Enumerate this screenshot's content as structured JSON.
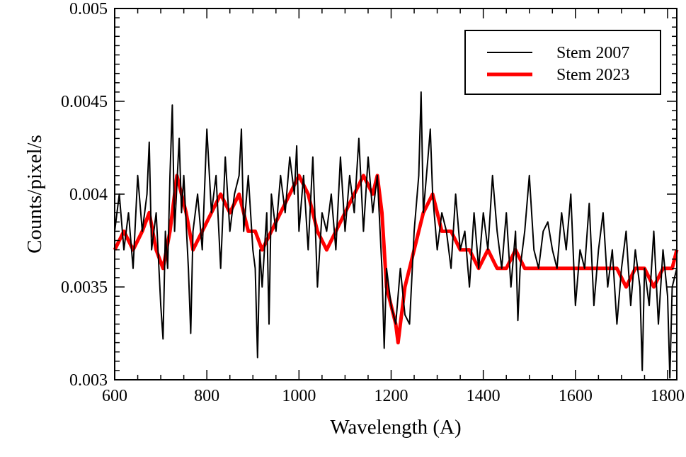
{
  "chart_data": {
    "type": "line",
    "title": "",
    "xlabel": "Wavelength (A)",
    "ylabel": "Counts/pixel/s",
    "xlim": [
      600,
      1820
    ],
    "ylim": [
      0.003,
      0.005
    ],
    "xticks": [
      600,
      800,
      1000,
      1200,
      1400,
      1600,
      1800
    ],
    "xtick_labels": [
      "600",
      "800",
      "1000",
      "1200",
      "1400",
      "1600",
      "1800"
    ],
    "yticks": [
      0.003,
      0.0035,
      0.004,
      0.0045,
      0.005
    ],
    "ytick_labels": [
      "0.003",
      "0.0035",
      "0.004",
      "0.0045",
      "0.005"
    ],
    "grid": false,
    "legend_position": "top-right",
    "series": [
      {
        "name": "Stem 2007",
        "color": "#000000",
        "x": [
          600,
          610,
          620,
          630,
          640,
          650,
          660,
          670,
          675,
          680,
          690,
          700,
          705,
          710,
          715,
          720,
          725,
          730,
          740,
          745,
          750,
          760,
          765,
          770,
          780,
          790,
          800,
          810,
          820,
          830,
          840,
          850,
          860,
          870,
          875,
          880,
          890,
          900,
          905,
          910,
          915,
          920,
          930,
          935,
          940,
          950,
          960,
          970,
          980,
          990,
          995,
          1000,
          1010,
          1020,
          1030,
          1040,
          1050,
          1060,
          1070,
          1080,
          1090,
          1100,
          1110,
          1120,
          1130,
          1140,
          1150,
          1160,
          1170,
          1180,
          1185,
          1190,
          1200,
          1210,
          1220,
          1230,
          1240,
          1250,
          1260,
          1265,
          1270,
          1280,
          1285,
          1290,
          1300,
          1310,
          1320,
          1330,
          1340,
          1350,
          1360,
          1370,
          1380,
          1390,
          1400,
          1410,
          1420,
          1430,
          1440,
          1450,
          1460,
          1470,
          1475,
          1480,
          1490,
          1500,
          1510,
          1520,
          1530,
          1540,
          1550,
          1560,
          1570,
          1580,
          1590,
          1600,
          1610,
          1620,
          1630,
          1640,
          1650,
          1660,
          1670,
          1680,
          1690,
          1700,
          1710,
          1720,
          1730,
          1740,
          1745,
          1750,
          1760,
          1770,
          1780,
          1790,
          1800,
          1805,
          1810,
          1820
        ],
        "y": [
          0.0038,
          0.004,
          0.0037,
          0.0039,
          0.0036,
          0.0041,
          0.0038,
          0.004,
          0.00428,
          0.0037,
          0.0039,
          0.0034,
          0.00322,
          0.0038,
          0.0036,
          0.0041,
          0.00448,
          0.0038,
          0.0043,
          0.0039,
          0.0041,
          0.0036,
          0.00325,
          0.0038,
          0.004,
          0.0037,
          0.00435,
          0.0039,
          0.0041,
          0.0036,
          0.0042,
          0.0038,
          0.004,
          0.0041,
          0.00435,
          0.0038,
          0.0041,
          0.0037,
          0.0036,
          0.00312,
          0.0037,
          0.0035,
          0.0039,
          0.0033,
          0.004,
          0.0038,
          0.0041,
          0.0039,
          0.0042,
          0.004,
          0.00426,
          0.0038,
          0.0041,
          0.0037,
          0.0042,
          0.0035,
          0.0039,
          0.0038,
          0.004,
          0.0037,
          0.0042,
          0.0038,
          0.0041,
          0.0039,
          0.0043,
          0.0038,
          0.0042,
          0.0039,
          0.0041,
          0.0036,
          0.00317,
          0.0036,
          0.0034,
          0.0033,
          0.0036,
          0.00335,
          0.0033,
          0.0038,
          0.0041,
          0.00455,
          0.0039,
          0.0042,
          0.00435,
          0.004,
          0.0037,
          0.0039,
          0.0038,
          0.0036,
          0.004,
          0.0037,
          0.0038,
          0.0035,
          0.0039,
          0.0036,
          0.0039,
          0.0037,
          0.0041,
          0.0038,
          0.0036,
          0.0039,
          0.0035,
          0.0038,
          0.00332,
          0.0036,
          0.0038,
          0.0041,
          0.0037,
          0.0036,
          0.0038,
          0.00385,
          0.0037,
          0.0036,
          0.0039,
          0.0037,
          0.004,
          0.0034,
          0.0037,
          0.0036,
          0.00395,
          0.0034,
          0.0037,
          0.0039,
          0.0035,
          0.0037,
          0.0033,
          0.0036,
          0.0038,
          0.0034,
          0.0037,
          0.0035,
          0.00305,
          0.0036,
          0.0034,
          0.0038,
          0.0033,
          0.0037,
          0.00345,
          0.00301,
          0.0035,
          0.0036
        ]
      },
      {
        "name": "Stem 2023",
        "color": "#ff0000",
        "x": [
          600,
          620,
          640,
          660,
          675,
          690,
          705,
          720,
          735,
          745,
          755,
          770,
          790,
          810,
          830,
          850,
          870,
          890,
          905,
          920,
          940,
          960,
          980,
          1000,
          1020,
          1040,
          1060,
          1080,
          1100,
          1120,
          1140,
          1160,
          1170,
          1180,
          1190,
          1200,
          1210,
          1215,
          1220,
          1230,
          1240,
          1250,
          1270,
          1290,
          1310,
          1330,
          1350,
          1370,
          1390,
          1410,
          1430,
          1450,
          1470,
          1490,
          1510,
          1530,
          1550,
          1570,
          1590,
          1610,
          1630,
          1650,
          1670,
          1690,
          1710,
          1730,
          1750,
          1770,
          1790,
          1810,
          1820
        ],
        "y": [
          0.0037,
          0.0038,
          0.0037,
          0.0038,
          0.0039,
          0.0037,
          0.0036,
          0.0038,
          0.0041,
          0.004,
          0.0039,
          0.0037,
          0.0038,
          0.0039,
          0.004,
          0.0039,
          0.004,
          0.0038,
          0.0038,
          0.0037,
          0.0038,
          0.0039,
          0.004,
          0.0041,
          0.004,
          0.0038,
          0.0037,
          0.0038,
          0.0039,
          0.004,
          0.0041,
          0.004,
          0.0041,
          0.0039,
          0.0035,
          0.0034,
          0.0033,
          0.0032,
          0.0033,
          0.0035,
          0.0036,
          0.0037,
          0.0039,
          0.004,
          0.0038,
          0.0038,
          0.0037,
          0.0037,
          0.0036,
          0.0037,
          0.0036,
          0.0036,
          0.0037,
          0.0036,
          0.0036,
          0.0036,
          0.0036,
          0.0036,
          0.0036,
          0.0036,
          0.0036,
          0.0036,
          0.0036,
          0.0036,
          0.0035,
          0.0036,
          0.0036,
          0.0035,
          0.0036,
          0.0036,
          0.0037
        ]
      }
    ]
  }
}
